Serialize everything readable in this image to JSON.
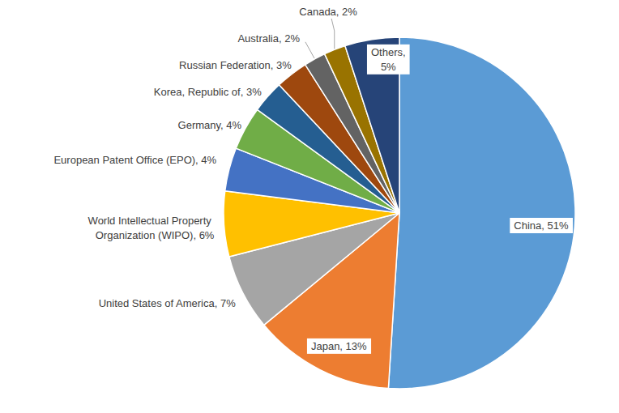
{
  "chart_data": {
    "type": "pie",
    "categories": [
      "China",
      "Japan",
      "United States of America",
      "World Intellectual Property Organization (WIPO)",
      "European Patent Office (EPO)",
      "Germany",
      "Korea, Republic of",
      "Russian Federation",
      "Australia",
      "Canada",
      "Others"
    ],
    "values": [
      51,
      13,
      7,
      6,
      4,
      4,
      3,
      3,
      2,
      2,
      5
    ],
    "value_labels": [
      "51%",
      "13%",
      "7%",
      "6%",
      "4%",
      "4%",
      "3%",
      "3%",
      "2%",
      "2%",
      "5%"
    ],
    "colors": [
      "#5b9bd5",
      "#ed7d31",
      "#a5a5a5",
      "#ffc000",
      "#4472c4",
      "#70ad47",
      "#255e91",
      "#9e480e",
      "#636363",
      "#997300",
      "#264478"
    ],
    "data_labels": true
  }
}
